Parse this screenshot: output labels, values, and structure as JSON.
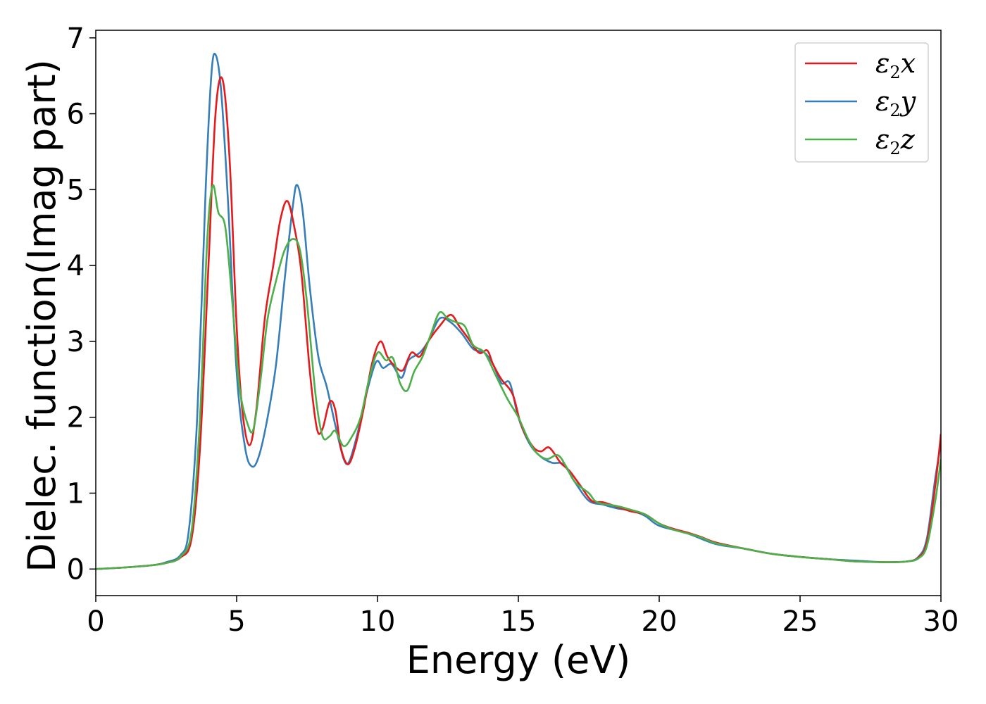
{
  "chart_data": {
    "type": "line",
    "xlabel": "Energy (eV)",
    "ylabel": "Dielec. function(Imag part)",
    "xlim": [
      0,
      30
    ],
    "ylim": [
      -0.35,
      7.1
    ],
    "xticks": [
      0,
      5,
      10,
      15,
      20,
      25,
      30
    ],
    "yticks": [
      0,
      1,
      2,
      3,
      4,
      5,
      6,
      7
    ],
    "grid": false,
    "legend_position": "top-right",
    "series": [
      {
        "name": "ε2x",
        "legend": {
          "base": "ε",
          "sub": "2",
          "suffix": "x"
        },
        "color": "#e41a1c",
        "points": [
          [
            0,
            0
          ],
          [
            1,
            0.02
          ],
          [
            2,
            0.05
          ],
          [
            2.5,
            0.08
          ],
          [
            3,
            0.15
          ],
          [
            3.4,
            0.4
          ],
          [
            3.7,
            1.6
          ],
          [
            4.0,
            4.0
          ],
          [
            4.25,
            6.0
          ],
          [
            4.5,
            6.45
          ],
          [
            4.75,
            5.4
          ],
          [
            5.0,
            3.2
          ],
          [
            5.2,
            2.1
          ],
          [
            5.45,
            1.63
          ],
          [
            5.7,
            2.1
          ],
          [
            6.0,
            3.3
          ],
          [
            6.3,
            4.0
          ],
          [
            6.55,
            4.6
          ],
          [
            6.8,
            4.85
          ],
          [
            7.05,
            4.5
          ],
          [
            7.3,
            3.9
          ],
          [
            7.6,
            2.6
          ],
          [
            7.85,
            1.85
          ],
          [
            8.05,
            1.85
          ],
          [
            8.3,
            2.2
          ],
          [
            8.5,
            2.1
          ],
          [
            8.7,
            1.6
          ],
          [
            8.95,
            1.38
          ],
          [
            9.2,
            1.6
          ],
          [
            9.5,
            2.1
          ],
          [
            9.8,
            2.7
          ],
          [
            10.1,
            3.0
          ],
          [
            10.35,
            2.8
          ],
          [
            10.6,
            2.68
          ],
          [
            10.9,
            2.62
          ],
          [
            11.2,
            2.85
          ],
          [
            11.5,
            2.8
          ],
          [
            11.8,
            3.0
          ],
          [
            12.2,
            3.2
          ],
          [
            12.6,
            3.35
          ],
          [
            12.9,
            3.2
          ],
          [
            13.2,
            3.05
          ],
          [
            13.6,
            2.85
          ],
          [
            13.9,
            2.88
          ],
          [
            14.1,
            2.7
          ],
          [
            14.4,
            2.5
          ],
          [
            14.8,
            2.3
          ],
          [
            15.1,
            1.9
          ],
          [
            15.5,
            1.62
          ],
          [
            15.8,
            1.55
          ],
          [
            16.1,
            1.6
          ],
          [
            16.5,
            1.4
          ],
          [
            16.8,
            1.3
          ],
          [
            17.2,
            1.1
          ],
          [
            17.6,
            0.9
          ],
          [
            18.0,
            0.88
          ],
          [
            18.5,
            0.82
          ],
          [
            19.0,
            0.76
          ],
          [
            19.5,
            0.72
          ],
          [
            20.0,
            0.6
          ],
          [
            20.5,
            0.53
          ],
          [
            21.0,
            0.48
          ],
          [
            21.5,
            0.42
          ],
          [
            22.0,
            0.35
          ],
          [
            23.0,
            0.27
          ],
          [
            24.0,
            0.2
          ],
          [
            25.0,
            0.16
          ],
          [
            26.0,
            0.13
          ],
          [
            27.0,
            0.1
          ],
          [
            28.0,
            0.09
          ],
          [
            28.8,
            0.1
          ],
          [
            29.2,
            0.15
          ],
          [
            29.5,
            0.35
          ],
          [
            29.8,
            1.1
          ],
          [
            30.0,
            1.78
          ]
        ]
      },
      {
        "name": "ε2y",
        "legend": {
          "base": "ε",
          "sub": "2",
          "suffix": "y"
        },
        "color": "#377eb8",
        "points": [
          [
            0,
            0
          ],
          [
            1,
            0.02
          ],
          [
            2,
            0.05
          ],
          [
            2.5,
            0.09
          ],
          [
            3,
            0.18
          ],
          [
            3.3,
            0.5
          ],
          [
            3.6,
            2.0
          ],
          [
            3.9,
            5.0
          ],
          [
            4.1,
            6.5
          ],
          [
            4.25,
            6.78
          ],
          [
            4.45,
            6.3
          ],
          [
            4.7,
            4.8
          ],
          [
            5.0,
            2.6
          ],
          [
            5.3,
            1.6
          ],
          [
            5.55,
            1.35
          ],
          [
            5.8,
            1.5
          ],
          [
            6.1,
            2.0
          ],
          [
            6.4,
            2.7
          ],
          [
            6.7,
            3.8
          ],
          [
            7.0,
            4.8
          ],
          [
            7.15,
            5.06
          ],
          [
            7.35,
            4.7
          ],
          [
            7.6,
            3.7
          ],
          [
            7.9,
            2.8
          ],
          [
            8.2,
            2.4
          ],
          [
            8.5,
            1.9
          ],
          [
            8.8,
            1.45
          ],
          [
            9.0,
            1.42
          ],
          [
            9.3,
            1.8
          ],
          [
            9.6,
            2.3
          ],
          [
            9.95,
            2.73
          ],
          [
            10.2,
            2.65
          ],
          [
            10.5,
            2.7
          ],
          [
            10.85,
            2.52
          ],
          [
            11.1,
            2.75
          ],
          [
            11.5,
            2.85
          ],
          [
            11.8,
            3.0
          ],
          [
            12.2,
            3.3
          ],
          [
            12.6,
            3.25
          ],
          [
            13.0,
            3.1
          ],
          [
            13.4,
            2.9
          ],
          [
            13.8,
            2.85
          ],
          [
            14.1,
            2.7
          ],
          [
            14.4,
            2.45
          ],
          [
            14.7,
            2.45
          ],
          [
            15.0,
            2.0
          ],
          [
            15.4,
            1.65
          ],
          [
            15.8,
            1.48
          ],
          [
            16.2,
            1.4
          ],
          [
            16.6,
            1.38
          ],
          [
            17.0,
            1.15
          ],
          [
            17.5,
            0.9
          ],
          [
            18.0,
            0.85
          ],
          [
            18.5,
            0.8
          ],
          [
            19.0,
            0.77
          ],
          [
            19.5,
            0.7
          ],
          [
            20.0,
            0.57
          ],
          [
            21.0,
            0.47
          ],
          [
            22.0,
            0.33
          ],
          [
            23.0,
            0.27
          ],
          [
            24.0,
            0.2
          ],
          [
            25.0,
            0.16
          ],
          [
            26.0,
            0.13
          ],
          [
            27.0,
            0.11
          ],
          [
            28.0,
            0.09
          ],
          [
            28.8,
            0.1
          ],
          [
            29.2,
            0.16
          ],
          [
            29.5,
            0.4
          ],
          [
            29.8,
            1.2
          ],
          [
            30.0,
            1.65
          ]
        ]
      },
      {
        "name": "ε2z",
        "legend": {
          "base": "ε",
          "sub": "2",
          "suffix": "z"
        },
        "color": "#4daf4a",
        "points": [
          [
            0,
            0
          ],
          [
            1,
            0.02
          ],
          [
            2,
            0.05
          ],
          [
            2.5,
            0.08
          ],
          [
            3,
            0.16
          ],
          [
            3.4,
            0.5
          ],
          [
            3.7,
            2.0
          ],
          [
            3.95,
            4.3
          ],
          [
            4.15,
            5.05
          ],
          [
            4.35,
            4.7
          ],
          [
            4.6,
            4.5
          ],
          [
            4.85,
            3.5
          ],
          [
            5.1,
            2.4
          ],
          [
            5.4,
            1.9
          ],
          [
            5.6,
            1.85
          ],
          [
            5.85,
            2.5
          ],
          [
            6.1,
            3.3
          ],
          [
            6.4,
            3.8
          ],
          [
            6.7,
            4.2
          ],
          [
            7.0,
            4.35
          ],
          [
            7.25,
            4.2
          ],
          [
            7.5,
            3.5
          ],
          [
            7.8,
            2.3
          ],
          [
            8.05,
            1.75
          ],
          [
            8.3,
            1.75
          ],
          [
            8.5,
            1.82
          ],
          [
            8.8,
            1.62
          ],
          [
            9.1,
            1.75
          ],
          [
            9.4,
            2.0
          ],
          [
            9.7,
            2.5
          ],
          [
            10.0,
            2.85
          ],
          [
            10.3,
            2.75
          ],
          [
            10.55,
            2.78
          ],
          [
            10.8,
            2.45
          ],
          [
            11.05,
            2.35
          ],
          [
            11.3,
            2.6
          ],
          [
            11.6,
            2.8
          ],
          [
            11.9,
            3.1
          ],
          [
            12.2,
            3.38
          ],
          [
            12.5,
            3.3
          ],
          [
            12.8,
            3.25
          ],
          [
            13.1,
            3.2
          ],
          [
            13.4,
            2.95
          ],
          [
            13.8,
            2.85
          ],
          [
            14.2,
            2.55
          ],
          [
            14.6,
            2.25
          ],
          [
            15.0,
            2.0
          ],
          [
            15.3,
            1.75
          ],
          [
            15.6,
            1.55
          ],
          [
            16.0,
            1.45
          ],
          [
            16.4,
            1.5
          ],
          [
            16.7,
            1.35
          ],
          [
            17.0,
            1.15
          ],
          [
            17.5,
            1.0
          ],
          [
            17.8,
            0.88
          ],
          [
            18.5,
            0.83
          ],
          [
            19.0,
            0.78
          ],
          [
            19.5,
            0.72
          ],
          [
            20.0,
            0.6
          ],
          [
            20.5,
            0.52
          ],
          [
            21.2,
            0.45
          ],
          [
            21.6,
            0.4
          ],
          [
            22.0,
            0.34
          ],
          [
            23.0,
            0.27
          ],
          [
            24.0,
            0.2
          ],
          [
            25.0,
            0.16
          ],
          [
            26.0,
            0.13
          ],
          [
            27.0,
            0.1
          ],
          [
            28.0,
            0.09
          ],
          [
            28.8,
            0.1
          ],
          [
            29.2,
            0.14
          ],
          [
            29.5,
            0.3
          ],
          [
            29.8,
            0.9
          ],
          [
            30.0,
            1.45
          ]
        ]
      }
    ]
  }
}
